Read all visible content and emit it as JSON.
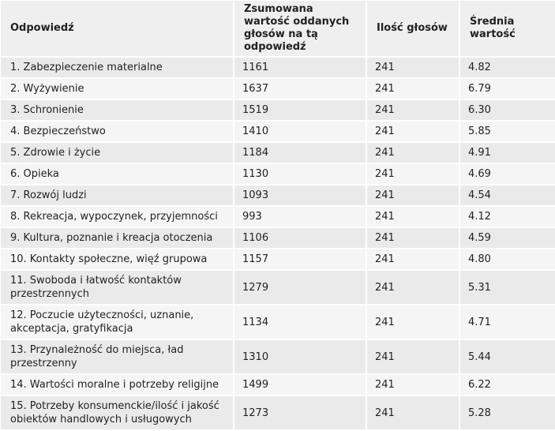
{
  "table": {
    "headers": [
      "Odpowiedź",
      "Zsumowana wartość oddanych głosów na tą odpowiedź",
      "Ilość głosów",
      "Średnia wartość"
    ],
    "rows": [
      [
        "1. Zabezpieczenie materialne",
        "1161",
        "241",
        "4.82"
      ],
      [
        "2. Wyżywienie",
        "1637",
        "241",
        "6.79"
      ],
      [
        "3. Schronienie",
        "1519",
        "241",
        "6.30"
      ],
      [
        "4. Bezpieczeństwo",
        "1410",
        "241",
        "5.85"
      ],
      [
        "5. Zdrowie i życie",
        "1184",
        "241",
        "4.91"
      ],
      [
        "6. Opieka",
        "1130",
        "241",
        "4.69"
      ],
      [
        "7. Rozwój ludzi",
        "1093",
        "241",
        "4.54"
      ],
      [
        "8. Rekreacja, wypoczynek, przyjemności",
        "993",
        "241",
        "4.12"
      ],
      [
        "9. Kultura, poznanie i kreacja otoczenia",
        "1106",
        "241",
        "4.59"
      ],
      [
        "10. Kontakty społeczne, więź grupowa",
        "1157",
        "241",
        "4.80"
      ],
      [
        "11. Swoboda i łatwość kontaktów przestrzennych",
        "1279",
        "241",
        "5.31"
      ],
      [
        "12. Poczucie użyteczności, uznanie, akceptacja, gratyfikacja",
        "1134",
        "241",
        "4.71"
      ],
      [
        "13. Przynależność do miejsca, ład przestrzenny",
        "1310",
        "241",
        "5.44"
      ],
      [
        "14. Wartości moralne i potrzeby religijne",
        "1499",
        "241",
        "6.22"
      ],
      [
        "15. Potrzeby konsumenckie/ilość i jakość obiektów handlowych i usługowych",
        "1273",
        "241",
        "5.28"
      ]
    ]
  }
}
